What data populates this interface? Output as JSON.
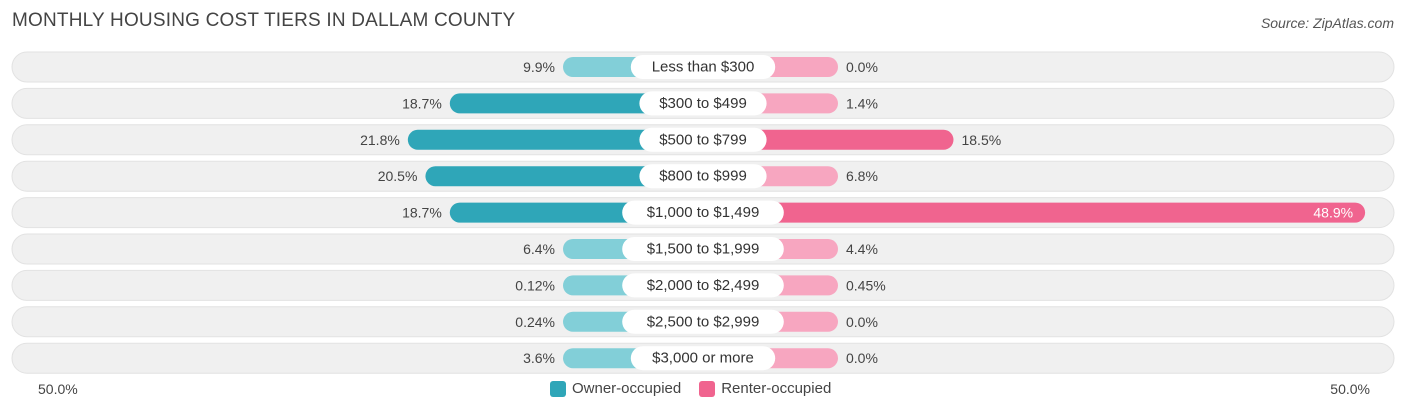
{
  "header": {
    "title": "MONTHLY HOUSING COST TIERS IN DALLAM COUNTY",
    "source": "Source: ZipAtlas.com"
  },
  "axis": {
    "left_label": "50.0%",
    "right_label": "50.0%"
  },
  "legend": {
    "owner": "Owner-occupied",
    "renter": "Renter-occupied"
  },
  "colors": {
    "owner": "#2fa6b8",
    "owner_light": "#82cfd8",
    "renter": "#f0648f",
    "renter_light": "#f7a6c0",
    "track": "#f0f0f0"
  },
  "chart_data": {
    "type": "bar",
    "orientation": "horizontal-diverging",
    "title": "MONTHLY HOUSING COST TIERS IN DALLAM COUNTY",
    "xlim": [
      -50,
      50
    ],
    "categories": [
      "Less than $300",
      "$300 to $499",
      "$500 to $799",
      "$800 to $999",
      "$1,000 to $1,499",
      "$1,500 to $1,999",
      "$2,000 to $2,499",
      "$2,500 to $2,999",
      "$3,000 or more"
    ],
    "series": [
      {
        "name": "Owner-occupied",
        "values": [
          9.9,
          18.7,
          21.8,
          20.5,
          18.7,
          6.4,
          0.12,
          0.24,
          3.6
        ],
        "labels": [
          "9.9%",
          "18.7%",
          "21.8%",
          "20.5%",
          "18.7%",
          "6.4%",
          "0.12%",
          "0.24%",
          "3.6%"
        ]
      },
      {
        "name": "Renter-occupied",
        "values": [
          0.0,
          1.4,
          18.5,
          6.8,
          48.9,
          4.4,
          0.45,
          0.0,
          0.0
        ],
        "labels": [
          "0.0%",
          "1.4%",
          "18.5%",
          "6.8%",
          "48.9%",
          "4.4%",
          "0.45%",
          "0.0%",
          "0.0%"
        ]
      }
    ]
  }
}
